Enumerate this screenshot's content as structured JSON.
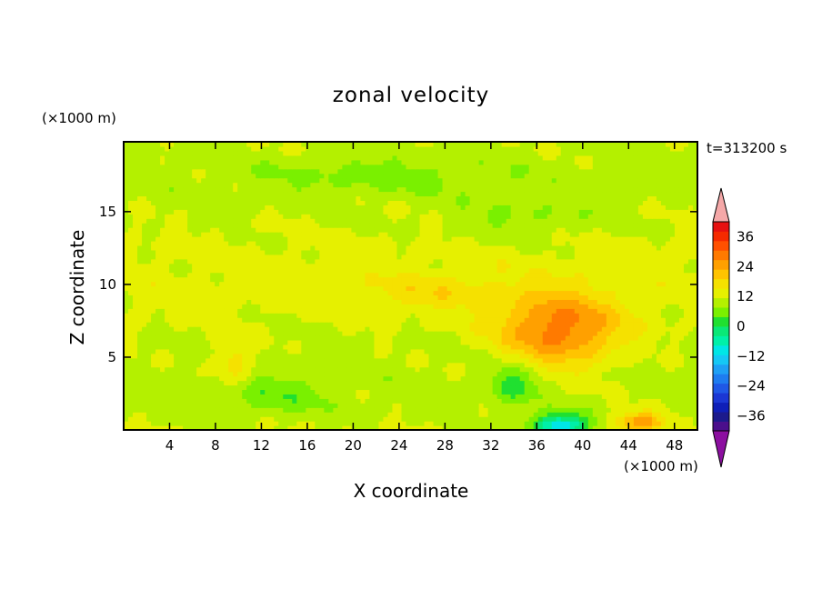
{
  "chart_data": {
    "type": "heatmap",
    "title": "zonal velocity",
    "xlabel": "X coordinate",
    "ylabel": "Z coordinate",
    "x_unit": "(×1000 m)",
    "y_unit": "(×1000 m)",
    "time_label": "t=313200 s",
    "xlim": [
      0,
      50
    ],
    "ylim": [
      0,
      19.8
    ],
    "xticks": [
      4,
      8,
      12,
      16,
      20,
      24,
      28,
      32,
      36,
      40,
      44,
      48
    ],
    "yticks": [
      5,
      10,
      15
    ],
    "colorbar": {
      "min": -42,
      "max": 42,
      "step": 3,
      "tick_values": [
        -36,
        -24,
        -12,
        0,
        12,
        24,
        36
      ],
      "tick_labels": [
        "−36",
        "−24",
        "−12",
        "0",
        "12",
        "24",
        "36"
      ],
      "colors": [
        "#4b0f8c",
        "#1c1a8c",
        "#0f1fb8",
        "#1b37d4",
        "#1f58e6",
        "#1e7cf0",
        "#1ea0f5",
        "#15c8f5",
        "#00e6e6",
        "#00f0a8",
        "#0ae877",
        "#20e030",
        "#7af000",
        "#b4f000",
        "#e6f000",
        "#f5e100",
        "#ffc400",
        "#ffa000",
        "#ff7a00",
        "#ff5000",
        "#f52a00",
        "#e61010"
      ],
      "under_color": "#8c0fa0",
      "over_color": "#f5a8a8"
    },
    "field_features": [
      {
        "kind": "jet",
        "x": 38,
        "z": 6.9,
        "sx": 5.2,
        "sz": 2.6,
        "peak": 14
      },
      {
        "kind": "jet",
        "x": 45,
        "z": 0.6,
        "sx": 2.2,
        "sz": 0.7,
        "peak": 11
      },
      {
        "kind": "jet",
        "x": 9.5,
        "z": 4.6,
        "sx": 1.6,
        "sz": 1.8,
        "peak": 6
      },
      {
        "kind": "jet",
        "x": 27,
        "z": 9.5,
        "sx": 6,
        "sz": 1.2,
        "peak": 4
      },
      {
        "kind": "trough",
        "x": 38,
        "z": 0.3,
        "sx": 2.4,
        "sz": 0.8,
        "peak": -18
      },
      {
        "kind": "trough",
        "x": 34,
        "z": 3.2,
        "sx": 2.2,
        "sz": 1.4,
        "peak": -7
      },
      {
        "kind": "trough",
        "x": 13,
        "z": 2.4,
        "sx": 5,
        "sz": 1.4,
        "peak": -4
      },
      {
        "kind": "trough",
        "x": 22,
        "z": 17.5,
        "sx": 10,
        "sz": 1.2,
        "peak": -3
      },
      {
        "kind": "trough",
        "x": 35,
        "z": 14.5,
        "sx": 6,
        "sz": 1.4,
        "peak": -3
      }
    ]
  }
}
